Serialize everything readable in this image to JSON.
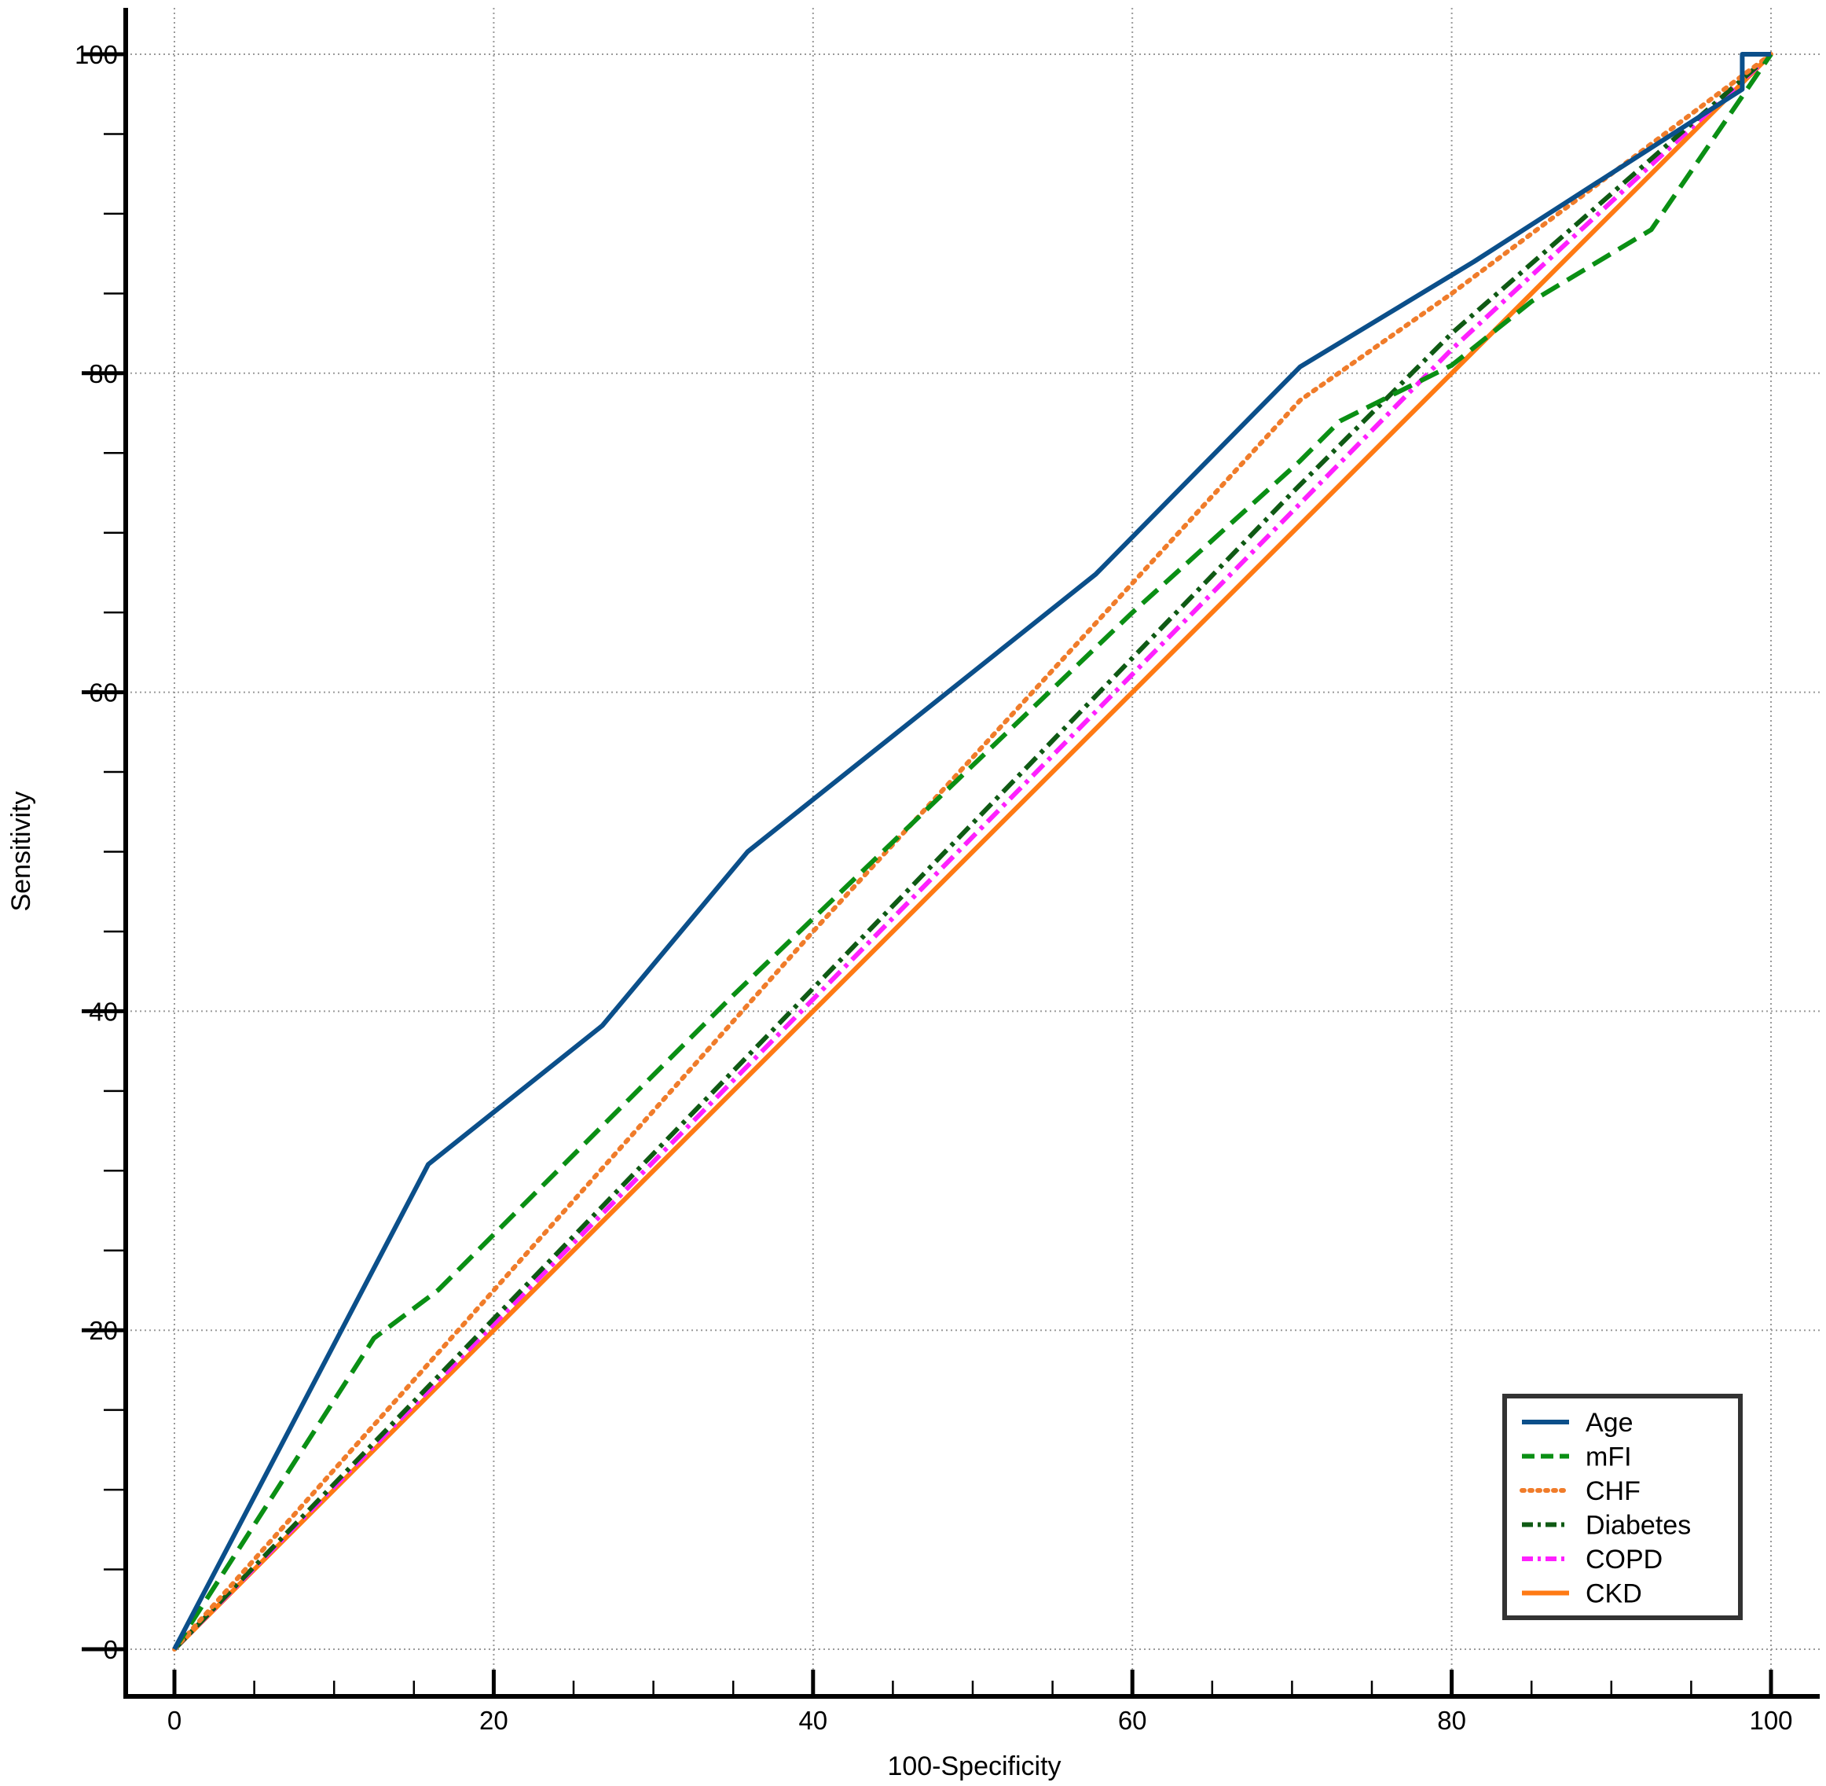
{
  "chart_data": {
    "type": "line",
    "xlabel": "100-Specificity",
    "ylabel": "Sensitivity",
    "xlim": [
      -3,
      103
    ],
    "ylim": [
      -3,
      103
    ],
    "x_ticks": [
      0,
      20,
      40,
      60,
      80,
      100
    ],
    "y_ticks": [
      0,
      20,
      40,
      60,
      80,
      100
    ],
    "x_tick_labels": [
      "0",
      "20",
      "40",
      "60",
      "80",
      "100"
    ],
    "y_tick_labels": [
      "0",
      "20",
      "40",
      "60",
      "80",
      "100"
    ],
    "grid": true,
    "legend_position": "bottom-right",
    "reference_line": {
      "x": [
        0,
        100
      ],
      "y": [
        0,
        100
      ],
      "color": "#8b2500",
      "style": "dotted"
    },
    "series": [
      {
        "name": "Age",
        "color": "#0b4f8a",
        "style": "solid",
        "x": [
          0,
          15.9,
          26.8,
          35.9,
          57.7,
          70.5,
          81.4,
          98.2,
          98.2,
          100
        ],
        "y": [
          0,
          30.4,
          39.1,
          50.0,
          67.4,
          80.4,
          87.0,
          97.8,
          100,
          100
        ]
      },
      {
        "name": "mFI",
        "color": "#0a8f14",
        "style": "dashed",
        "x": [
          0,
          12.5,
          16.5,
          22.0,
          35.0,
          48.0,
          60.0,
          70.5,
          73.0,
          80.0,
          85.0,
          92.5,
          100
        ],
        "y": [
          0,
          19.5,
          22.5,
          28.0,
          41.0,
          53.5,
          65.0,
          74.5,
          77.0,
          80.5,
          84.5,
          89.0,
          100
        ]
      },
      {
        "name": "CHF",
        "color": "#f07c2a",
        "style": "dotted",
        "x": [
          0,
          40.0,
          70.5,
          80.0,
          100
        ],
        "y": [
          0,
          45.0,
          78.3,
          85.0,
          100
        ]
      },
      {
        "name": "Diabetes",
        "color": "#0f5a14",
        "style": "dash-dot",
        "x": [
          0,
          70.0,
          80.0,
          100
        ],
        "y": [
          0,
          72.5,
          82.5,
          100
        ]
      },
      {
        "name": "COPD",
        "color": "#ff20ff",
        "style": "dash-dot",
        "x": [
          0,
          80.0,
          100
        ],
        "y": [
          0,
          81.5,
          100
        ]
      },
      {
        "name": "CKD",
        "color": "#ff7a14",
        "style": "solid",
        "x": [
          0,
          100
        ],
        "y": [
          0,
          100
        ]
      }
    ]
  }
}
